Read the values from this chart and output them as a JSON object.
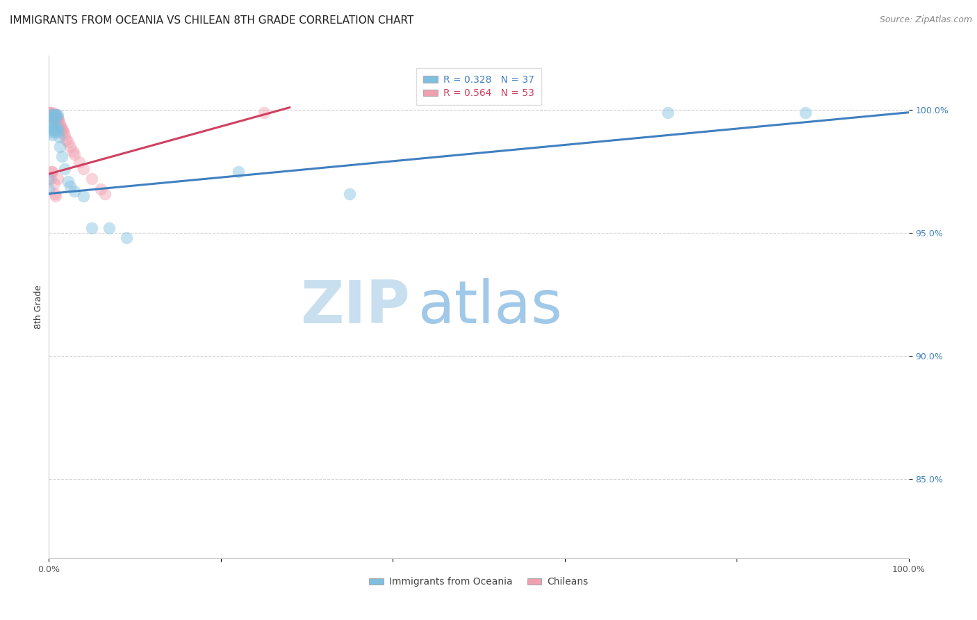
{
  "title": "IMMIGRANTS FROM OCEANIA VS CHILEAN 8TH GRADE CORRELATION CHART",
  "source": "Source: ZipAtlas.com",
  "ylabel": "8th Grade",
  "ylabel_ticks_labels": [
    "85.0%",
    "90.0%",
    "95.0%",
    "100.0%"
  ],
  "ylabel_ticks_vals": [
    0.85,
    0.9,
    0.95,
    1.0
  ],
  "xmin": 0.0,
  "xmax": 1.0,
  "ymin": 0.818,
  "ymax": 1.022,
  "legend_bottom_labels": [
    "Immigrants from Oceania",
    "Chileans"
  ],
  "legend_R_blue": "R = 0.328",
  "legend_N_blue": "N = 37",
  "legend_R_pink": "R = 0.564",
  "legend_N_pink": "N = 53",
  "blue_color": "#7fbfdf",
  "pink_color": "#f0a0b0",
  "blue_line_color": "#4080c0",
  "pink_line_color": "#d04060",
  "watermark_zip": "ZIP",
  "watermark_atlas": "atlas",
  "watermark_zip_color": "#c8dff0",
  "watermark_atlas_color": "#a0c8e8",
  "blue_scatter_x": [
    0.0,
    0.0,
    0.001,
    0.002,
    0.002,
    0.003,
    0.003,
    0.004,
    0.004,
    0.005,
    0.005,
    0.006,
    0.006,
    0.007,
    0.007,
    0.008,
    0.008,
    0.009,
    0.009,
    0.01,
    0.01,
    0.011,
    0.012,
    0.013,
    0.015,
    0.018,
    0.022,
    0.025,
    0.03,
    0.04,
    0.05,
    0.07,
    0.09,
    0.35,
    0.72,
    0.88,
    0.22
  ],
  "blue_scatter_y": [
    0.972,
    0.968,
    0.991,
    0.997,
    0.992,
    0.998,
    0.995,
    0.993,
    0.99,
    0.998,
    0.993,
    0.997,
    0.992,
    0.998,
    0.991,
    0.998,
    0.993,
    0.997,
    0.992,
    0.998,
    0.993,
    0.991,
    0.989,
    0.985,
    0.981,
    0.976,
    0.971,
    0.969,
    0.967,
    0.965,
    0.952,
    0.952,
    0.948,
    0.966,
    0.999,
    0.999,
    0.975
  ],
  "pink_scatter_x": [
    0.0,
    0.0,
    0.0,
    0.0,
    0.0,
    0.0,
    0.001,
    0.001,
    0.001,
    0.002,
    0.002,
    0.003,
    0.003,
    0.004,
    0.004,
    0.005,
    0.005,
    0.006,
    0.006,
    0.007,
    0.007,
    0.008,
    0.008,
    0.009,
    0.009,
    0.01,
    0.01,
    0.011,
    0.012,
    0.013,
    0.014,
    0.015,
    0.016,
    0.017,
    0.018,
    0.02,
    0.022,
    0.025,
    0.028,
    0.03,
    0.035,
    0.04,
    0.05,
    0.06,
    0.065,
    0.25,
    0.01,
    0.003,
    0.002,
    0.004,
    0.006,
    0.007,
    0.008
  ],
  "pink_scatter_y": [
    0.999,
    0.999,
    0.998,
    0.998,
    0.997,
    0.997,
    0.999,
    0.998,
    0.998,
    0.998,
    0.997,
    0.998,
    0.997,
    0.998,
    0.997,
    0.999,
    0.998,
    0.998,
    0.997,
    0.998,
    0.997,
    0.997,
    0.996,
    0.998,
    0.996,
    0.997,
    0.996,
    0.996,
    0.995,
    0.994,
    0.993,
    0.992,
    0.992,
    0.991,
    0.99,
    0.988,
    0.987,
    0.985,
    0.983,
    0.982,
    0.979,
    0.976,
    0.972,
    0.968,
    0.966,
    0.999,
    0.972,
    0.975,
    0.972,
    0.975,
    0.97,
    0.966,
    0.965
  ],
  "blue_line_x0": 0.0,
  "blue_line_x1": 1.0,
  "blue_line_y0": 0.966,
  "blue_line_y1": 0.999,
  "pink_line_x0": 0.0,
  "pink_line_x1": 0.28,
  "pink_line_y0": 0.974,
  "pink_line_y1": 1.001,
  "title_fontsize": 11,
  "axis_label_fontsize": 9,
  "tick_fontsize": 9,
  "legend_fontsize": 10,
  "source_fontsize": 9
}
